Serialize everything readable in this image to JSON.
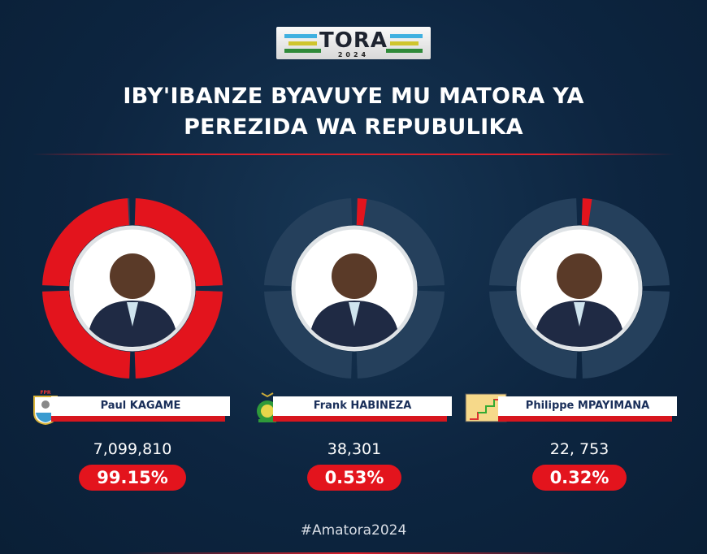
{
  "logo": {
    "text": "TORA",
    "year": "2024"
  },
  "title": {
    "line1": "IBY'IBANZE BYAVUYE MU MATORA YA",
    "line2": "PEREZIDA WA REPUBULIKA"
  },
  "hashtag": "#Amatora2024",
  "colors": {
    "background": "#0d2540",
    "accent": "#e3141d",
    "ring_empty": "#25405c",
    "name_text": "#1a2f5a"
  },
  "chart_data": {
    "type": "pie",
    "variant": "donut-gauge",
    "categories": [
      "Paul KAGAME",
      "Frank HABINEZA",
      "Philippe MPAYIMANA"
    ],
    "votes_labels": [
      "7,099,810",
      "38,301",
      "22, 753"
    ],
    "votes": [
      7099810,
      38301,
      22753
    ],
    "percent_labels": [
      "99.15%",
      "0.53%",
      "0.32%"
    ],
    "values": [
      99.15,
      0.53,
      0.32
    ],
    "emblems": [
      "fpr-emblem-icon",
      "green-party-emblem-icon",
      "ps-imberakuri-stairs-icon"
    ]
  }
}
